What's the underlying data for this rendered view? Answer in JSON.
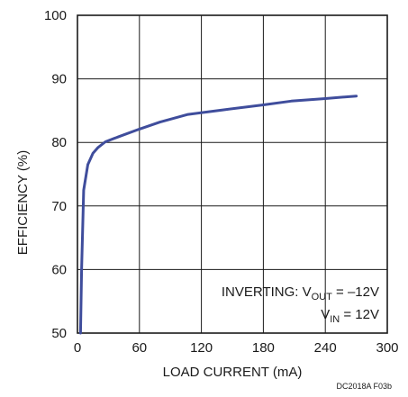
{
  "chart_data": {
    "type": "line",
    "xlabel": "LOAD CURRENT (mA)",
    "ylabel": "EFFICIENCY (%)",
    "xlim": [
      0,
      300
    ],
    "ylim": [
      50,
      100
    ],
    "xticks": [
      "0",
      "60",
      "120",
      "180",
      "240",
      "300"
    ],
    "yticks": [
      "50",
      "60",
      "70",
      "80",
      "90",
      "100"
    ],
    "grid": true,
    "series_color": "#3f4d9c",
    "series": [
      {
        "x": [
          3,
          4,
          6,
          10,
          15,
          20,
          27,
          40,
          60,
          80,
          107,
          140,
          180,
          207,
          240,
          270
        ],
        "y": [
          50,
          60,
          72.5,
          76.5,
          78.3,
          79.2,
          80.1,
          80.9,
          82.1,
          83.2,
          84.4,
          85.1,
          85.9,
          86.5,
          86.9,
          87.3
        ]
      }
    ],
    "annotation": {
      "line1_prefix": "INVERTING: V",
      "line1_sub": "OUT",
      "line1_suffix": " =  –12V",
      "line2_prefix": "V",
      "line2_sub": "IN",
      "line2_suffix": " = 12V"
    },
    "figure_code": "DC2018A F03b"
  }
}
